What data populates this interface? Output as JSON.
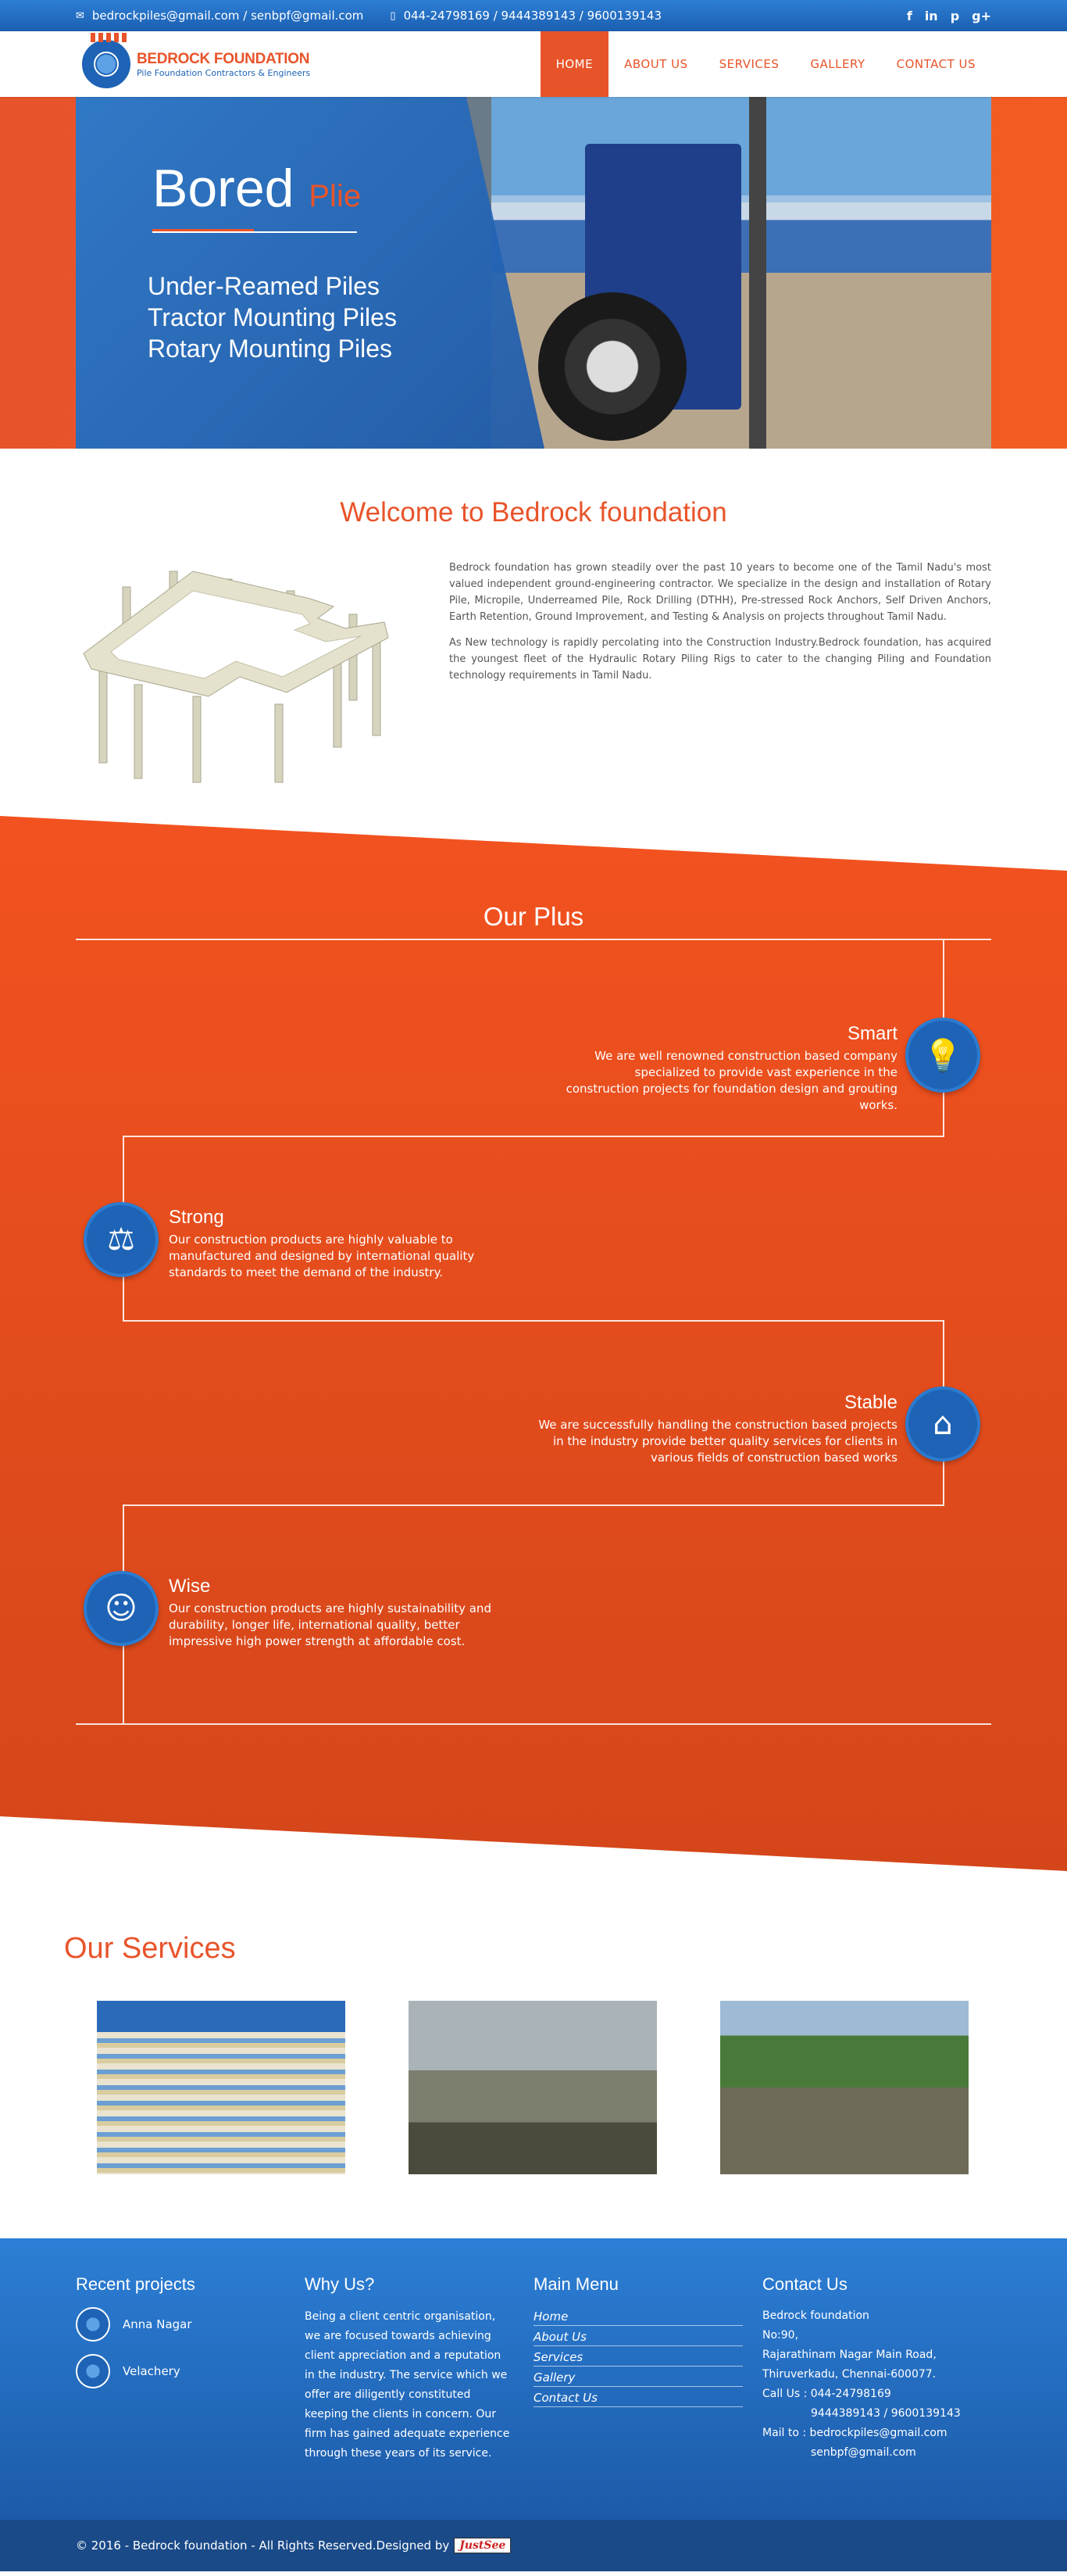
{
  "topbar": {
    "email": "bedrockpiles@gmail.com / senbpf@gmail.com",
    "phone": "044-24798169 / 9444389143 / 9600139143",
    "email_icon": "envelope-icon",
    "phone_icon": "mobile-icon",
    "social": [
      "f",
      "in",
      "p",
      "g+"
    ]
  },
  "header": {
    "logo_name": "BEDROCK FOUNDATION",
    "logo_tag": "Pile Foundation Contractors & Engineers",
    "nav": [
      "HOME",
      "ABOUT US",
      "SERVICES",
      "GALLERY",
      "CONTACT US"
    ],
    "active_nav": "HOME"
  },
  "hero": {
    "title": "Bored",
    "title_accent": "Plie",
    "lines": [
      "Under-Reamed Piles",
      "Tractor Mounting Piles",
      "Rotary Mounting Piles"
    ]
  },
  "welcome": {
    "title": "Welcome to Bedrock foundation",
    "p1": "Bedrock foundation has grown steadily over the past 10 years to become one of the Tamil Nadu's most valued independent ground-engineering contractor. We specialize in the design and installation of Rotary Pile, Micropile, Underreamed Pile, Rock Drilling (DTHH), Pre-stressed Rock Anchors, Self Driven Anchors, Earth Retention, Ground Improvement, and Testing & Analysis on projects throughout Tamil Nadu.",
    "p2": "As New technology is rapidly percolating into the Construction Industry.Bedrock foundation, has acquired the youngest fleet of the Hydraulic Rotary Piling Rigs to cater to the changing Piling and Foundation technology requirements in Tamil Nadu."
  },
  "plus": {
    "title": "Our Plus",
    "features": [
      {
        "title": "Smart",
        "icon": "lightbulb-icon",
        "text": "We are well renowned construction based company specialized to provide vast experience in the construction projects for foundation design and grouting works."
      },
      {
        "title": "Strong",
        "icon": "weight-icon",
        "text": "Our construction products are highly valuable to manufactured and designed by international quality standards to meet the demand of the industry."
      },
      {
        "title": "Stable",
        "icon": "house-icon",
        "text": "We are successfully handling the construction based projects in the industry provide better quality services for clients in various fields of construction based works"
      },
      {
        "title": "Wise",
        "icon": "head-idea-icon",
        "text": "Our construction products are highly sustainability and durability, longer life, international quality, better impressive high power strength at affordable cost."
      }
    ]
  },
  "services": {
    "title": "Our Services"
  },
  "footer": {
    "recent_title": "Recent projects",
    "recent": [
      "Anna Nagar",
      "Velachery"
    ],
    "why_title": "Why Us?",
    "why_text": "Being a client centric organisation, we are focused towards achieving client appreciation and a reputation in the industry. The service which we offer are diligently constituted keeping the clients in concern.  Our firm has gained adequate experience through these years of its service.",
    "menu_title": "Main Menu",
    "menu": [
      "Home",
      "About Us",
      "Services",
      "Gallery",
      "Contact Us"
    ],
    "contact_title": "Contact Us",
    "contact": {
      "name": "Bedrock foundation",
      "no": "No:90,",
      "street": "Rajarathinam Nagar Main Road,",
      "city": "Thiruverkadu, Chennai-600077.",
      "call": "Call Us : 044-24798169",
      "call2": "9444389143 / 9600139143",
      "mail": "Mail to : bedrockpiles@gmail.com",
      "mail2": "senbpf@gmail.com"
    },
    "copyright": "© 2016 - Bedrock foundation - All Rights Reserved.Designed by",
    "designer": "JustSee"
  }
}
